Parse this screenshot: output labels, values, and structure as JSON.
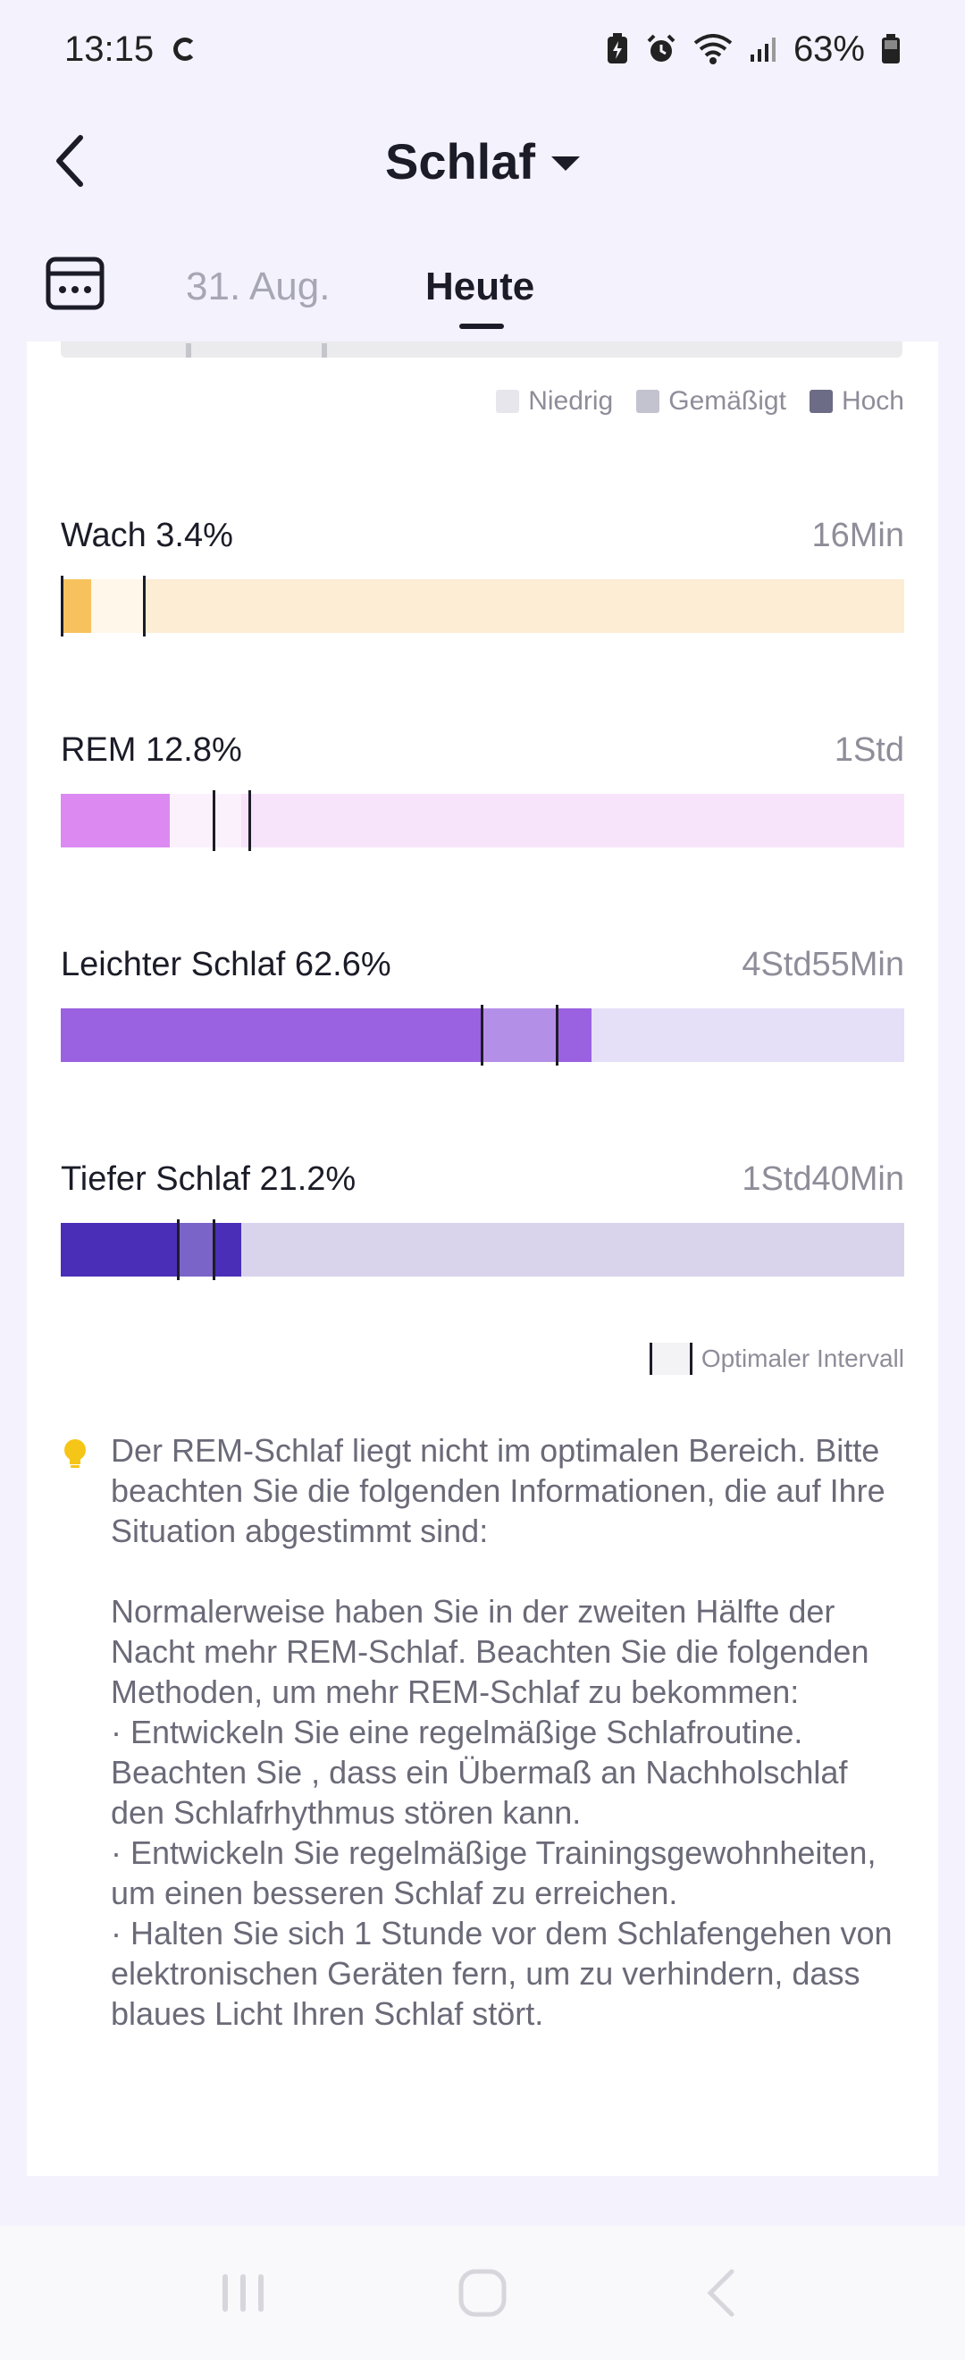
{
  "status": {
    "time": "13:15",
    "battery": "63%"
  },
  "header": {
    "title": "Schlaf"
  },
  "dates": {
    "previous": "31. Aug.",
    "current": "Heute"
  },
  "legend": {
    "low": "Niedrig",
    "moderate": "Gemäßigt",
    "high": "Hoch"
  },
  "metrics": [
    {
      "label": "Wach 3.4%",
      "value": "16Min",
      "percent": 3.4
    },
    {
      "label": "REM 12.8%",
      "value": "1Std",
      "percent": 12.8
    },
    {
      "label": "Leichter Schlaf 62.6%",
      "value": "4Std55Min",
      "percent": 62.6
    },
    {
      "label": "Tiefer Schlaf 21.2%",
      "value": "1Std40Min",
      "percent": 21.2
    }
  ],
  "optimal_legend": "Optimaler Intervall",
  "advice": "Der REM-Schlaf liegt nicht im optimalen Bereich. Bitte beachten Sie die folgenden Informationen, die auf Ihre Situation abgestimmt sind:\n\nNormalerweise haben Sie in der zweiten Hälfte der Nacht mehr REM-Schlaf. Beachten Sie die folgenden Methoden, um mehr REM-Schlaf zu bekommen:\n· Entwickeln Sie eine regelmäßige Schlafroutine. Beachten Sie , dass ein Übermaß an Nachholschlaf den Schlafrhythmus stören kann.\n· Entwickeln Sie regelmäßige Trainingsgewohnheiten, um einen besseren Schlaf zu erreichen.\n· Halten Sie sich 1 Stunde vor dem Schlafengehen von elektronischen Geräten fern, um zu verhindern, dass blaues Licht Ihren Schlaf stört.",
  "colors": {
    "awake": "#f7c25d",
    "rem": "#dc8af2",
    "light": "#9a62e0",
    "deep": "#4a2eb8"
  }
}
